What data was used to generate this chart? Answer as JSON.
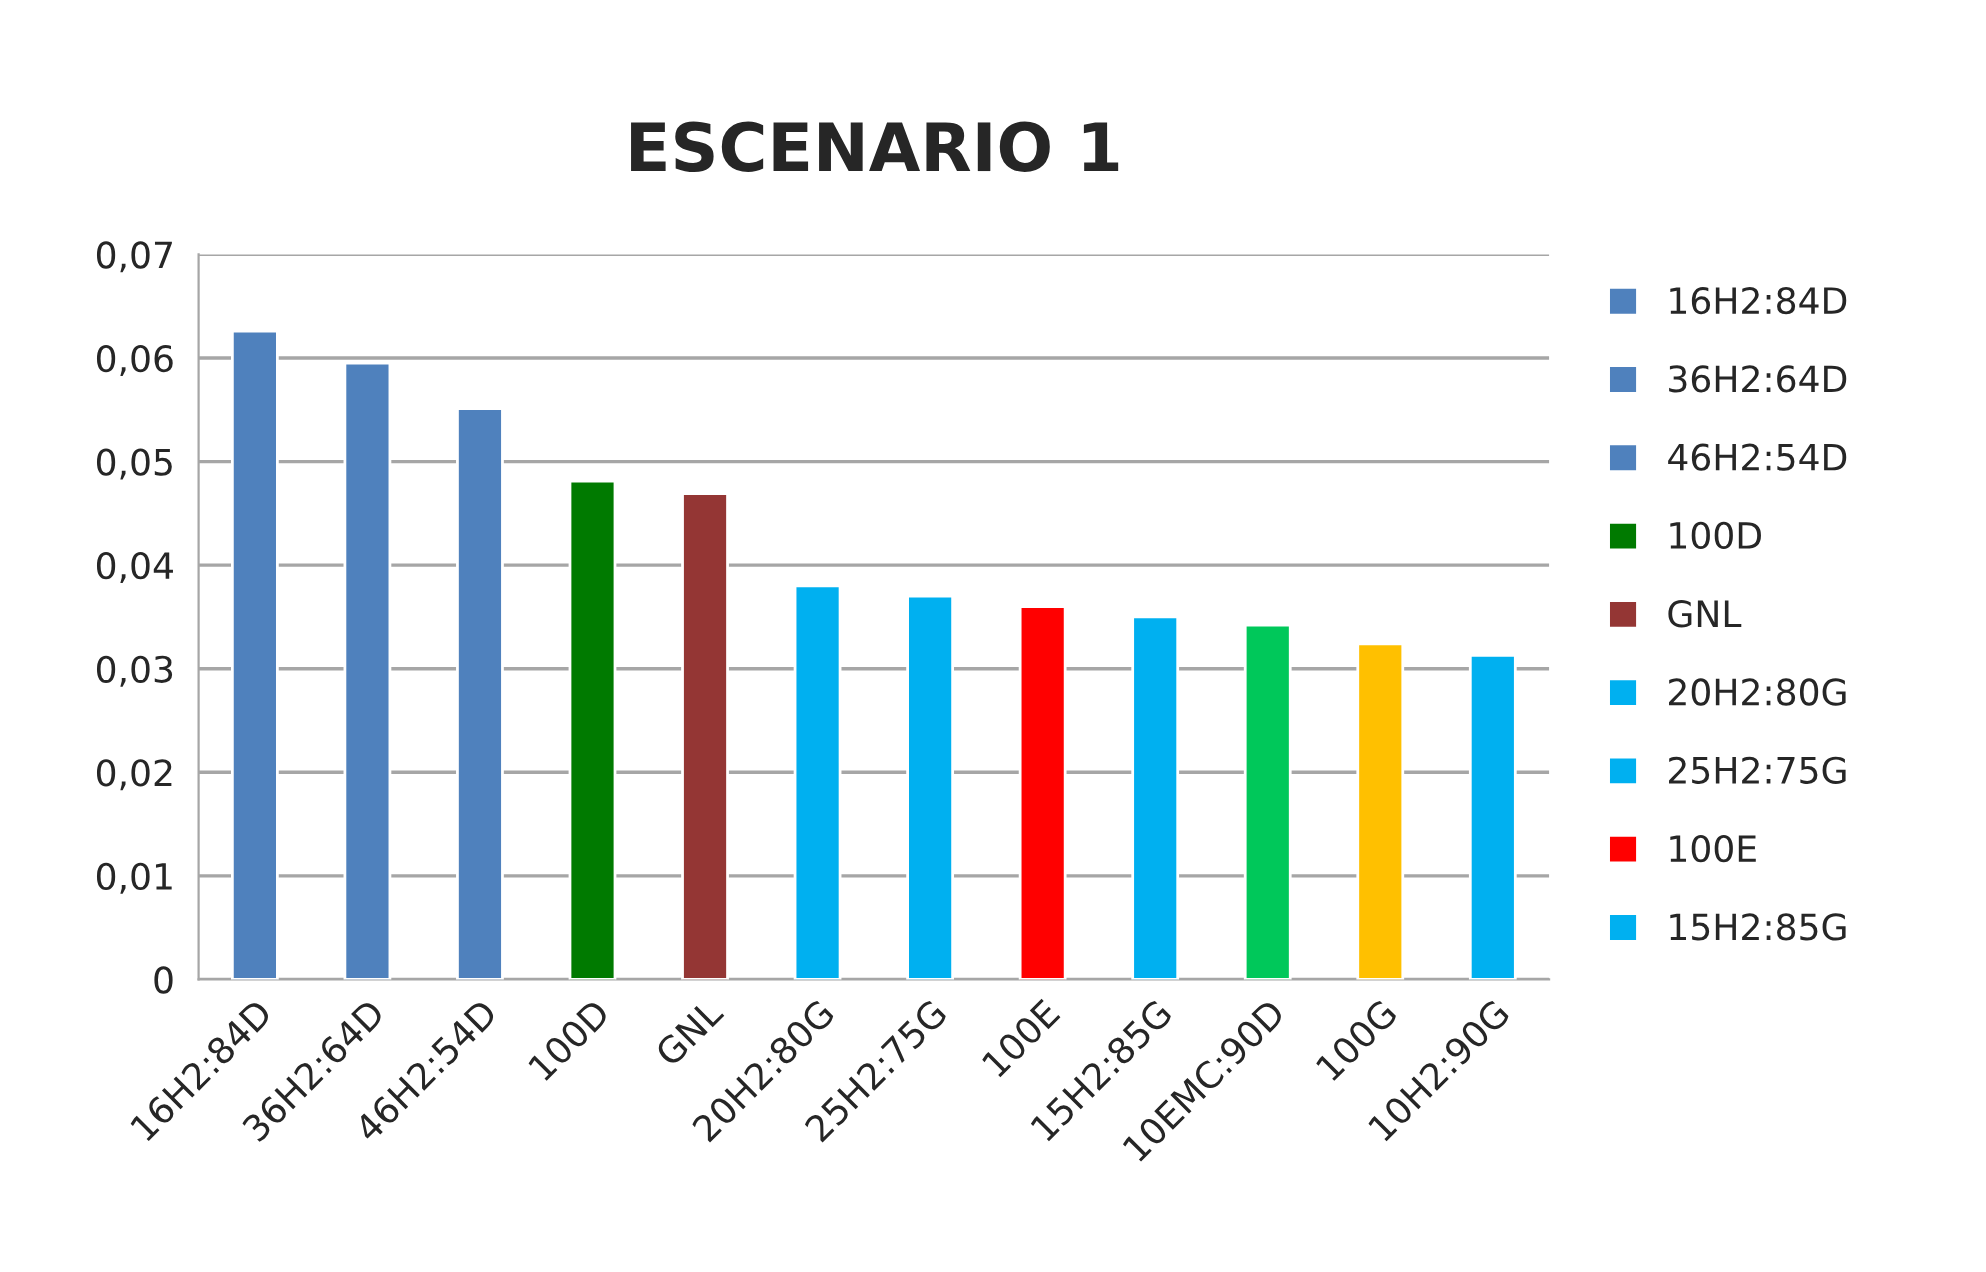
{
  "chart_data": {
    "type": "bar",
    "title": "ESCENARIO 1",
    "categories": [
      "16H2:84D",
      "36H2:64D",
      "46H2:54D",
      "100D",
      "GNL",
      "20H2:80G",
      "25H2:75G",
      "100E",
      "15H2:85G",
      "10EMC:90D",
      "100G",
      "10H2:90G"
    ],
    "series": [
      {
        "name": "16H2:84D",
        "color": "#4f81bd",
        "values": [
          0.0626,
          null,
          null,
          null,
          null,
          null,
          null,
          null,
          null,
          null,
          null,
          null
        ]
      },
      {
        "name": "36H2:64D",
        "color": "#4f81bd",
        "values": [
          null,
          0.0595,
          null,
          null,
          null,
          null,
          null,
          null,
          null,
          null,
          null,
          null
        ]
      },
      {
        "name": "46H2:54D",
        "color": "#4f81bd",
        "values": [
          null,
          null,
          0.0551,
          null,
          null,
          null,
          null,
          null,
          null,
          null,
          null,
          null
        ]
      },
      {
        "name": "100D",
        "color": "#007a00",
        "values": [
          null,
          null,
          null,
          0.0481,
          null,
          null,
          null,
          null,
          null,
          null,
          null,
          null
        ]
      },
      {
        "name": "GNL",
        "color": "#943634",
        "values": [
          null,
          null,
          null,
          null,
          0.0469,
          null,
          null,
          null,
          null,
          null,
          null,
          null
        ]
      },
      {
        "name": "20H2:80G",
        "color": "#00b0f0",
        "values": [
          null,
          null,
          null,
          null,
          null,
          0.038,
          null,
          null,
          null,
          null,
          null,
          null
        ]
      },
      {
        "name": "25H2:75G",
        "color": "#00b0f0",
        "values": [
          null,
          null,
          null,
          null,
          null,
          null,
          0.037,
          null,
          null,
          null,
          null,
          null
        ]
      },
      {
        "name": "100E",
        "color": "#ff0000",
        "values": [
          null,
          null,
          null,
          null,
          null,
          null,
          null,
          0.036,
          null,
          null,
          null,
          null
        ]
      },
      {
        "name": "15H2:85G",
        "color": "#00b0f0",
        "values": [
          null,
          null,
          null,
          null,
          null,
          null,
          null,
          null,
          0.035,
          null,
          null,
          null
        ]
      },
      {
        "color": "#00c85a",
        "values": [
          null,
          null,
          null,
          null,
          null,
          null,
          null,
          null,
          null,
          0.0342,
          null,
          null
        ]
      },
      {
        "color": "#ffc000",
        "values": [
          null,
          null,
          null,
          null,
          null,
          null,
          null,
          null,
          null,
          null,
          0.0324,
          null
        ]
      },
      {
        "color": "#00b0f0",
        "values": [
          null,
          null,
          null,
          null,
          null,
          null,
          null,
          null,
          null,
          null,
          null,
          0.0313
        ]
      }
    ],
    "ylim": [
      0,
      0.07
    ],
    "yticks": [
      {
        "value": 0,
        "label": "0"
      },
      {
        "value": 0.01,
        "label": "0,01"
      },
      {
        "value": 0.02,
        "label": "0,02"
      },
      {
        "value": 0.03,
        "label": "0,03"
      },
      {
        "value": 0.04,
        "label": "0,04"
      },
      {
        "value": 0.05,
        "label": "0,05"
      },
      {
        "value": 0.06,
        "label": "0,06"
      },
      {
        "value": 0.07,
        "label": "0,07"
      }
    ],
    "grid": "y",
    "legend": "right"
  }
}
